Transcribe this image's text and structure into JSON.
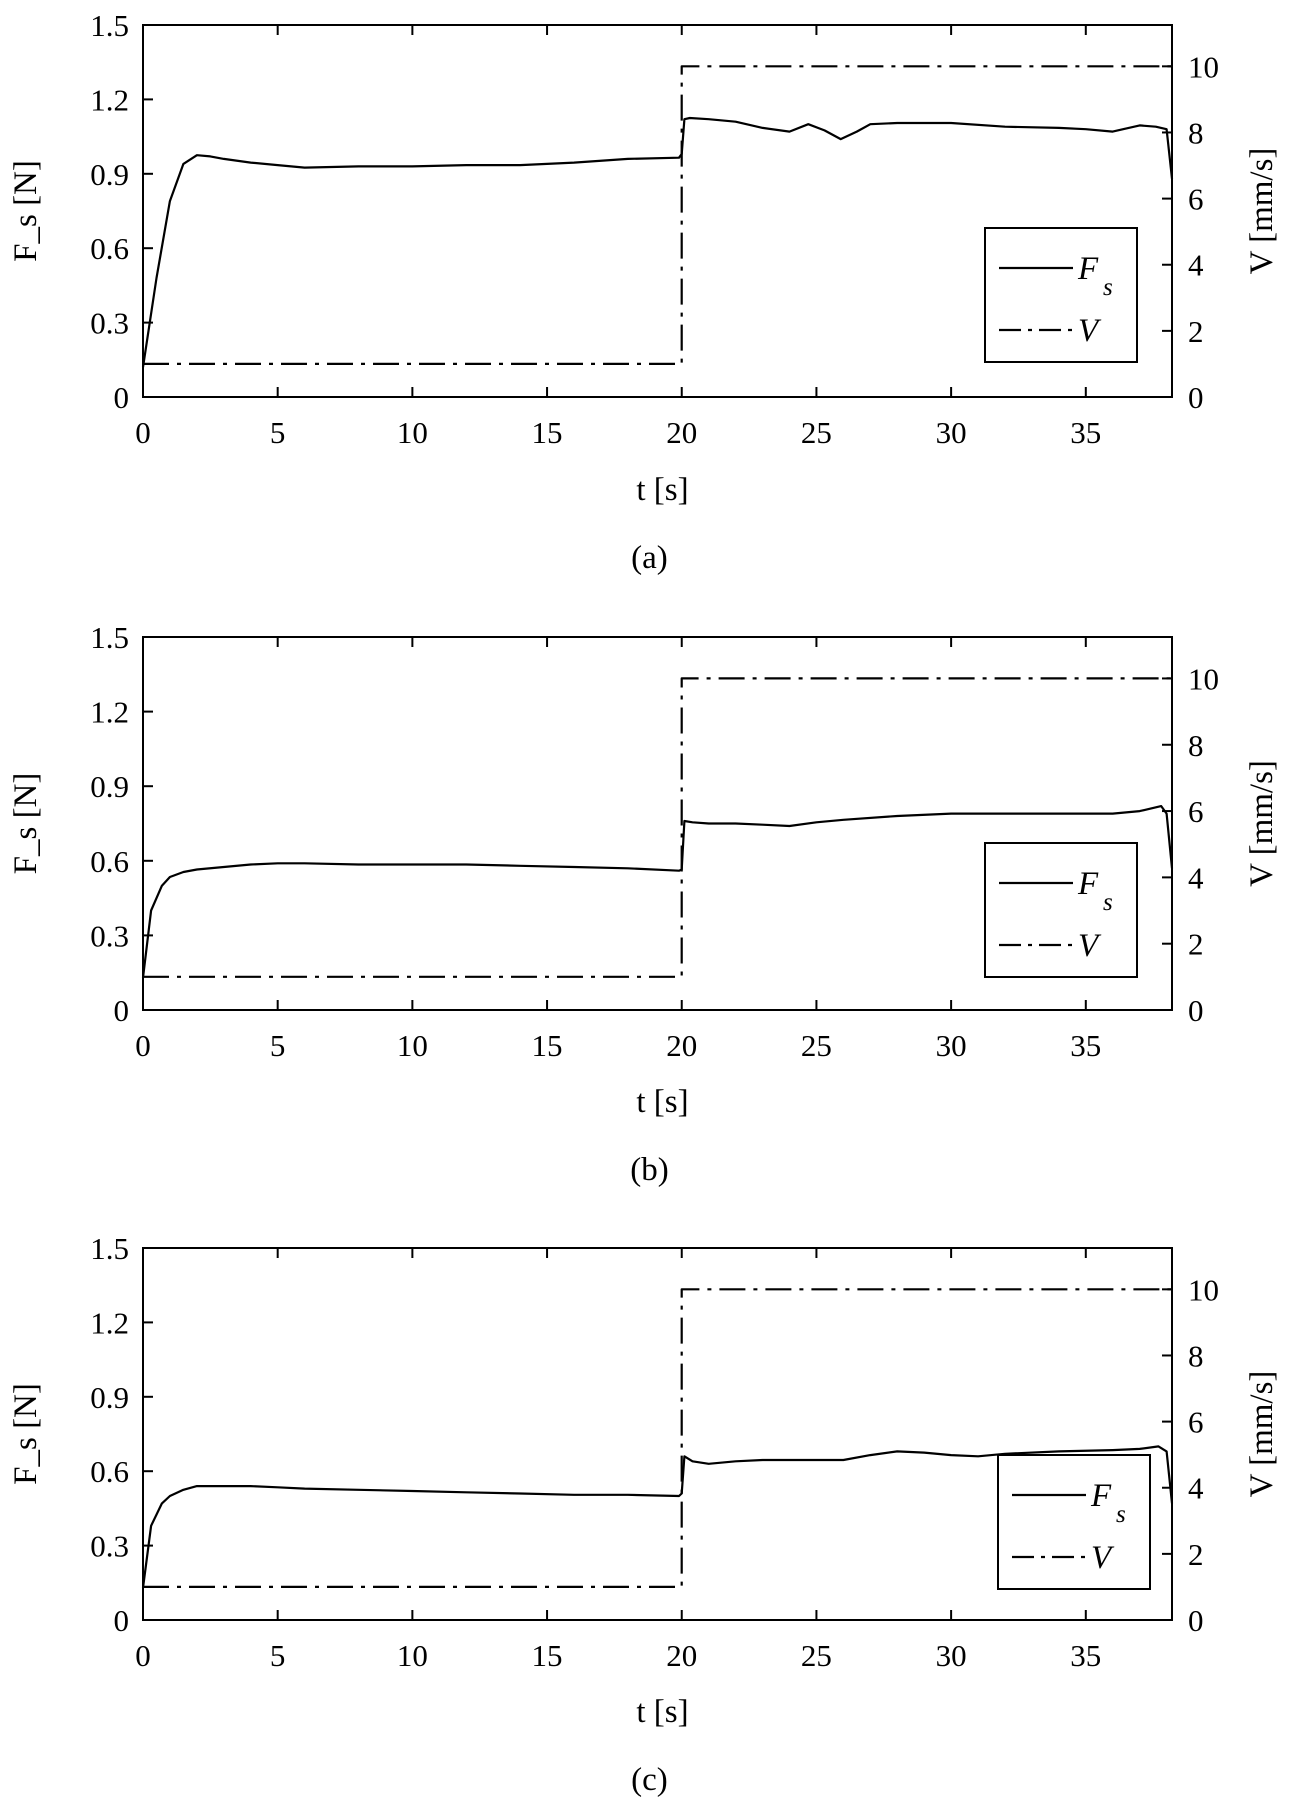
{
  "chart_data": [
    {
      "type": "line",
      "caption": "(a)",
      "xlabel": "t  [s]",
      "ylabel_left": "F_s [N]",
      "ylabel_right": "V [mm/s]",
      "xlim": [
        0,
        38.2
      ],
      "ylim_left": [
        0,
        1.5
      ],
      "ylim_right": [
        0,
        11.25
      ],
      "xticks": [
        "0",
        "5",
        "10",
        "15",
        "20",
        "25",
        "30",
        "35"
      ],
      "yticks_left": [
        "0",
        "0.3",
        "0.6",
        "0.9",
        "1.2",
        "1.5"
      ],
      "yticks_right": [
        "0",
        "2",
        "4",
        "6",
        "8",
        "10"
      ],
      "legend": {
        "position": "right-center",
        "entries": [
          {
            "label": "F",
            "sub": "s",
            "style": "solid"
          },
          {
            "label": "V",
            "sub": "",
            "style": "dash-dot"
          }
        ]
      },
      "series": [
        {
          "name": "F_s",
          "axis": "left",
          "style": "solid",
          "x": [
            0,
            0.5,
            1,
            1.5,
            2,
            2.5,
            3,
            4,
            5,
            6,
            8,
            10,
            12,
            14,
            16,
            18,
            19.9,
            20.0,
            20.1,
            20.3,
            21,
            22,
            23,
            24,
            24.7,
            25.3,
            25.9,
            26.5,
            27,
            28,
            30,
            32,
            34,
            35,
            36,
            37,
            37.6,
            38.0,
            38.2
          ],
          "y": [
            0.12,
            0.48,
            0.79,
            0.94,
            0.975,
            0.97,
            0.96,
            0.945,
            0.935,
            0.925,
            0.93,
            0.93,
            0.935,
            0.935,
            0.945,
            0.96,
            0.965,
            0.98,
            1.12,
            1.125,
            1.12,
            1.11,
            1.085,
            1.07,
            1.1,
            1.075,
            1.04,
            1.07,
            1.1,
            1.105,
            1.105,
            1.09,
            1.085,
            1.08,
            1.07,
            1.095,
            1.09,
            1.08,
            0.88
          ]
        },
        {
          "name": "V",
          "axis": "right",
          "style": "dash-dot",
          "x": [
            0,
            20,
            20,
            38.2
          ],
          "y": [
            1,
            1,
            10,
            10
          ]
        }
      ]
    },
    {
      "type": "line",
      "caption": "(b)",
      "xlabel": "t  [s]",
      "ylabel_left": "F_s [N]",
      "ylabel_right": "V [mm/s]",
      "xlim": [
        0,
        38.2
      ],
      "ylim_left": [
        0,
        1.5
      ],
      "ylim_right": [
        0,
        11.25
      ],
      "xticks": [
        "0",
        "5",
        "10",
        "15",
        "20",
        "25",
        "30",
        "35"
      ],
      "yticks_left": [
        "0",
        "0.3",
        "0.6",
        "0.9",
        "1.2",
        "1.5"
      ],
      "yticks_right": [
        "0",
        "2",
        "4",
        "6",
        "8",
        "10"
      ],
      "legend": {
        "position": "right-center",
        "entries": [
          {
            "label": "F",
            "sub": "s",
            "style": "solid"
          },
          {
            "label": "V",
            "sub": "",
            "style": "dash-dot"
          }
        ]
      },
      "series": [
        {
          "name": "F_s",
          "axis": "left",
          "style": "solid",
          "x": [
            0,
            0.3,
            0.7,
            1,
            1.5,
            2,
            3,
            4,
            5,
            6,
            8,
            10,
            12,
            14,
            16,
            18,
            19.9,
            20.0,
            20.1,
            20.4,
            21,
            22,
            23,
            24,
            25,
            26,
            28,
            30,
            32,
            34,
            36,
            37,
            37.8,
            38.0,
            38.2
          ],
          "y": [
            0.13,
            0.4,
            0.5,
            0.535,
            0.555,
            0.565,
            0.575,
            0.585,
            0.59,
            0.59,
            0.585,
            0.585,
            0.585,
            0.58,
            0.575,
            0.57,
            0.56,
            0.565,
            0.76,
            0.755,
            0.75,
            0.75,
            0.745,
            0.74,
            0.755,
            0.765,
            0.78,
            0.79,
            0.79,
            0.79,
            0.79,
            0.8,
            0.82,
            0.79,
            0.57
          ]
        },
        {
          "name": "V",
          "axis": "right",
          "style": "dash-dot",
          "x": [
            0,
            20,
            20,
            38.2
          ],
          "y": [
            1,
            1,
            10,
            10
          ]
        }
      ]
    },
    {
      "type": "line",
      "caption": "(c)",
      "xlabel": "t  [s]",
      "ylabel_left": "F_s [N]",
      "ylabel_right": "V [mm/s]",
      "xlim": [
        0,
        38.2
      ],
      "ylim_left": [
        0,
        1.5
      ],
      "ylim_right": [
        0,
        11.25
      ],
      "xticks": [
        "0",
        "5",
        "10",
        "15",
        "20",
        "25",
        "30",
        "35"
      ],
      "yticks_left": [
        "0",
        "0.3",
        "0.6",
        "0.9",
        "1.2",
        "1.5"
      ],
      "yticks_right": [
        "0",
        "2",
        "4",
        "6",
        "8",
        "10"
      ],
      "legend": {
        "position": "right-center",
        "entries": [
          {
            "label": "F",
            "sub": "s",
            "style": "solid"
          },
          {
            "label": "V",
            "sub": "",
            "style": "dash-dot"
          }
        ]
      },
      "series": [
        {
          "name": "F_s",
          "axis": "left",
          "style": "solid",
          "x": [
            0,
            0.3,
            0.7,
            1,
            1.5,
            2,
            3,
            4,
            5,
            6,
            8,
            10,
            12,
            14,
            16,
            18,
            19.9,
            20.0,
            20.1,
            20.4,
            21,
            22,
            23,
            24,
            25,
            26,
            27,
            28,
            29,
            30,
            31,
            32,
            34,
            36,
            37,
            37.7,
            38.0,
            38.2
          ],
          "y": [
            0.13,
            0.38,
            0.47,
            0.5,
            0.525,
            0.54,
            0.54,
            0.54,
            0.535,
            0.53,
            0.525,
            0.52,
            0.515,
            0.51,
            0.505,
            0.505,
            0.5,
            0.51,
            0.66,
            0.64,
            0.63,
            0.64,
            0.645,
            0.645,
            0.645,
            0.645,
            0.665,
            0.68,
            0.675,
            0.665,
            0.66,
            0.67,
            0.68,
            0.685,
            0.69,
            0.7,
            0.68,
            0.47
          ]
        },
        {
          "name": "V",
          "axis": "right",
          "style": "dash-dot",
          "x": [
            0,
            20,
            20,
            38.2
          ],
          "y": [
            1,
            1,
            10,
            10
          ]
        }
      ]
    }
  ]
}
